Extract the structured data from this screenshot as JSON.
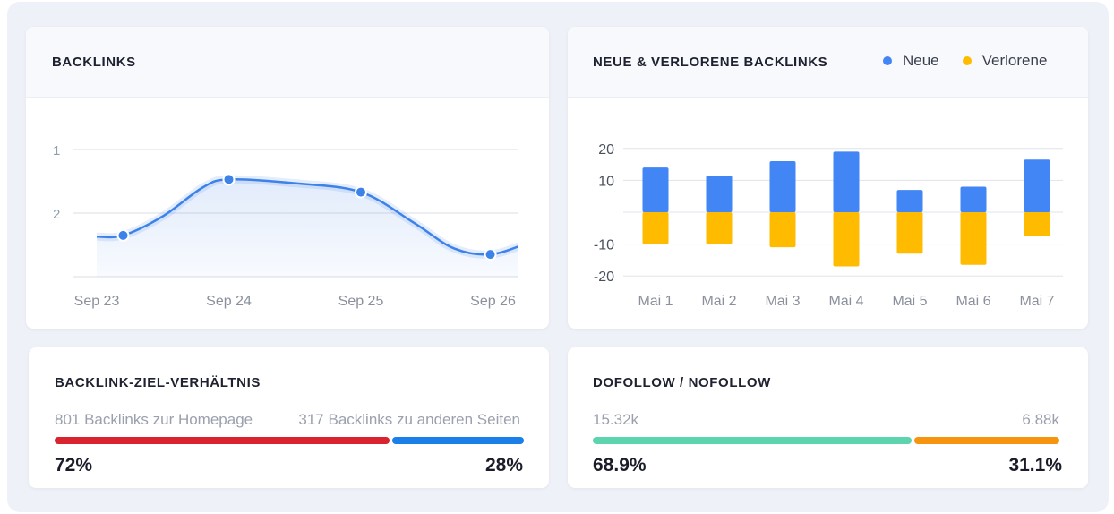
{
  "colors": {
    "line": "#3d82e8",
    "neue": "#4285f4",
    "verlorene": "#ffbb00",
    "homepage": "#d9232f",
    "other": "#1a7fe8",
    "dofollow": "#5cd4ae",
    "nofollow": "#f7940f"
  },
  "backlinks": {
    "title": "BACKLINKS",
    "chart_data": {
      "type": "line",
      "categories": [
        "Sep 23",
        "Sep 24",
        "Sep 25",
        "Sep 26"
      ],
      "y_ticks": [
        "1",
        "2"
      ],
      "y_axis_reversed": true,
      "ylim": [
        1,
        3
      ],
      "grid": true,
      "points": [
        {
          "x": 0.2,
          "y": 2.35
        },
        {
          "x": 1.0,
          "y": 1.47
        },
        {
          "x": 2.0,
          "y": 1.67
        },
        {
          "x": 2.98,
          "y": 2.65
        }
      ],
      "curve": [
        {
          "x": 0.0,
          "y": 2.37
        },
        {
          "x": 0.2,
          "y": 2.35
        },
        {
          "x": 0.5,
          "y": 2.05
        },
        {
          "x": 0.8,
          "y": 1.6
        },
        {
          "x": 1.0,
          "y": 1.47
        },
        {
          "x": 1.5,
          "y": 1.53
        },
        {
          "x": 2.0,
          "y": 1.67
        },
        {
          "x": 2.4,
          "y": 2.15
        },
        {
          "x": 2.7,
          "y": 2.55
        },
        {
          "x": 2.98,
          "y": 2.65
        },
        {
          "x": 3.25,
          "y": 2.48
        }
      ]
    }
  },
  "neue_verlorene": {
    "title": "NEUE & VERLORENE BACKLINKS",
    "legend": [
      {
        "label": "Neue",
        "color": "#4285f4"
      },
      {
        "label": "Verlorene",
        "color": "#ffbb00"
      }
    ],
    "chart_data": {
      "type": "bar",
      "categories": [
        "Mai 1",
        "Mai 2",
        "Mai 3",
        "Mai 4",
        "Mai 5",
        "Mai 6",
        "Mai 7"
      ],
      "y_ticks": [
        "20",
        "10",
        "-10",
        "-20"
      ],
      "ylim": [
        -20,
        20
      ],
      "grid": true,
      "series": [
        {
          "name": "Neue",
          "values": [
            14,
            11.5,
            16,
            19,
            7,
            8,
            16.5
          ]
        },
        {
          "name": "Verlorene",
          "values": [
            -10,
            -10,
            -11,
            -17,
            -13,
            -16.5,
            -7.5
          ]
        }
      ]
    }
  },
  "ratio": {
    "title": "BACKLINK-ZIEL-VERHÄLTNIS",
    "left_label": "801 Backlinks zur Homepage",
    "right_label": "317 Backlinks zu anderen Seiten",
    "left_percent": "72%",
    "right_percent": "28%",
    "left_fraction": 0.72
  },
  "follow": {
    "title": "DOFOLLOW / NOFOLLOW",
    "left_value": "15.32k",
    "right_value": "6.88k",
    "left_percent": "68.9%",
    "right_percent": "31.1%",
    "left_fraction": 0.689
  }
}
